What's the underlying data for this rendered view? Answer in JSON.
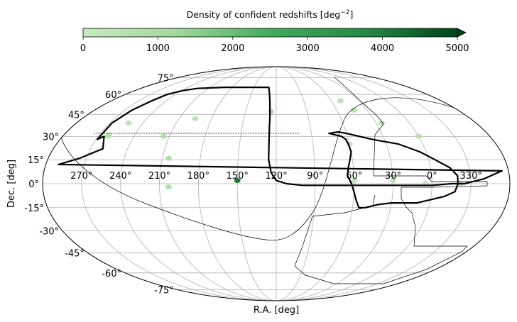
{
  "chart_data": {
    "type": "heatmap",
    "projection": "mollweide",
    "title": "",
    "colorbar": {
      "label": "Density of confident redshifts [deg",
      "label_exp": "−2",
      "label_end": "]",
      "ticks": [
        "0",
        "1000",
        "2000",
        "3000",
        "4000",
        "5000"
      ],
      "range": [
        0,
        5000
      ],
      "extend": "max",
      "colormap": "Greens",
      "color_low": "#f7fcf5",
      "color_high": "#00441b"
    },
    "xlabel": "R.A. [deg]",
    "ylabel": "Dec. [deg]",
    "ra_ticks": [
      "270°",
      "240°",
      "210°",
      "180°",
      "150°",
      "120°",
      "90°",
      "60°",
      "30°",
      "0°",
      "330°"
    ],
    "dec_ticks": [
      "75°",
      "60°",
      "45°",
      "30°",
      "15°",
      "0°",
      "-15°",
      "-30°",
      "-45°",
      "-60°",
      "-75°"
    ],
    "ra_center_deg": 120,
    "grid": true,
    "survey_footprint_ngc": [
      [
        269,
        28
      ],
      [
        268,
        39
      ],
      [
        263,
        48
      ],
      [
        256,
        55
      ],
      [
        250,
        60
      ],
      [
        240,
        63
      ],
      [
        225,
        65
      ],
      [
        190,
        66
      ],
      [
        170,
        66
      ],
      [
        155,
        66
      ],
      [
        130,
        66
      ],
      [
        128,
        60
      ],
      [
        127,
        55
      ],
      [
        126,
        45
      ],
      [
        126,
        35
      ],
      [
        126,
        25
      ],
      [
        126,
        15
      ],
      [
        124,
        7
      ],
      [
        120,
        2
      ],
      [
        112,
        0
      ],
      [
        100,
        -1
      ],
      [
        85,
        -1
      ],
      [
        70,
        -1
      ],
      [
        55,
        -1
      ],
      [
        45,
        -1
      ],
      [
        30,
        -1
      ],
      [
        15,
        -1
      ],
      [
        0,
        -1
      ],
      [
        -15,
        0
      ],
      [
        -25,
        0
      ],
      [
        -40,
        3
      ],
      [
        -55,
        8
      ],
      [
        -70,
        12
      ],
      [
        -85,
        16
      ],
      [
        -95,
        20
      ],
      [
        -100,
        22
      ],
      [
        -95,
        30
      ]
    ],
    "survey_footprint_sgc": [
      [
        67,
        33
      ],
      [
        60,
        32
      ],
      [
        40,
        28
      ],
      [
        20,
        25
      ],
      [
        5,
        20
      ],
      [
        -5,
        15
      ],
      [
        -15,
        10
      ],
      [
        -20,
        5
      ],
      [
        -20,
        0
      ],
      [
        -18,
        -5
      ],
      [
        -10,
        -8
      ],
      [
        0,
        -10
      ],
      [
        10,
        -12
      ],
      [
        20,
        -12
      ],
      [
        30,
        -12
      ],
      [
        40,
        -13
      ],
      [
        50,
        -15
      ],
      [
        55,
        -15
      ],
      [
        58,
        -10
      ],
      [
        60,
        -5
      ],
      [
        62,
        0
      ],
      [
        65,
        5
      ],
      [
        64,
        10
      ],
      [
        62,
        15
      ],
      [
        60,
        20
      ],
      [
        61,
        25
      ],
      [
        62,
        28
      ],
      [
        65,
        30
      ],
      [
        70,
        31
      ],
      [
        75,
        32
      ],
      [
        75,
        30
      ],
      [
        85,
        28
      ],
      [
        90,
        28
      ],
      [
        100,
        28
      ],
      [
        110,
        28
      ],
      [
        130,
        28
      ],
      [
        140,
        29
      ],
      [
        160,
        28
      ],
      [
        190,
        28
      ],
      [
        210,
        28
      ],
      [
        230,
        28
      ],
      [
        240,
        28
      ]
    ],
    "density_patches": [
      {
        "ra": 253,
        "dec": 39,
        "value": 600
      },
      {
        "ra": 262,
        "dec": 30,
        "value": 700
      },
      {
        "ra": 262,
        "dec": 31,
        "value": 700
      },
      {
        "ra": 215,
        "dec": 30,
        "value": 900
      },
      {
        "ra": 195,
        "dec": 42,
        "value": 700
      },
      {
        "ra": 205,
        "dec": 16,
        "value": 900
      },
      {
        "ra": 203,
        "dec": -2,
        "value": 900
      },
      {
        "ra": 150,
        "dec": 2,
        "value": 4500
      },
      {
        "ra": 125,
        "dec": 47,
        "value": 700
      },
      {
        "ra": 50,
        "dec": 55,
        "value": 600
      },
      {
        "ra": 43,
        "dec": 48,
        "value": 700
      },
      {
        "ra": 25,
        "dec": 39,
        "value": 700
      },
      {
        "ra": 60,
        "dec": 25,
        "value": 600
      },
      {
        "ra": 60,
        "dec": 2,
        "value": 600
      },
      {
        "ra": 30,
        "dec": 2,
        "value": 600
      },
      {
        "ra": 5,
        "dec": 0,
        "value": 600
      },
      {
        "ra": 338,
        "dec": 0,
        "value": 600
      },
      {
        "ra": 0,
        "dec": 30,
        "value": 700
      }
    ]
  }
}
